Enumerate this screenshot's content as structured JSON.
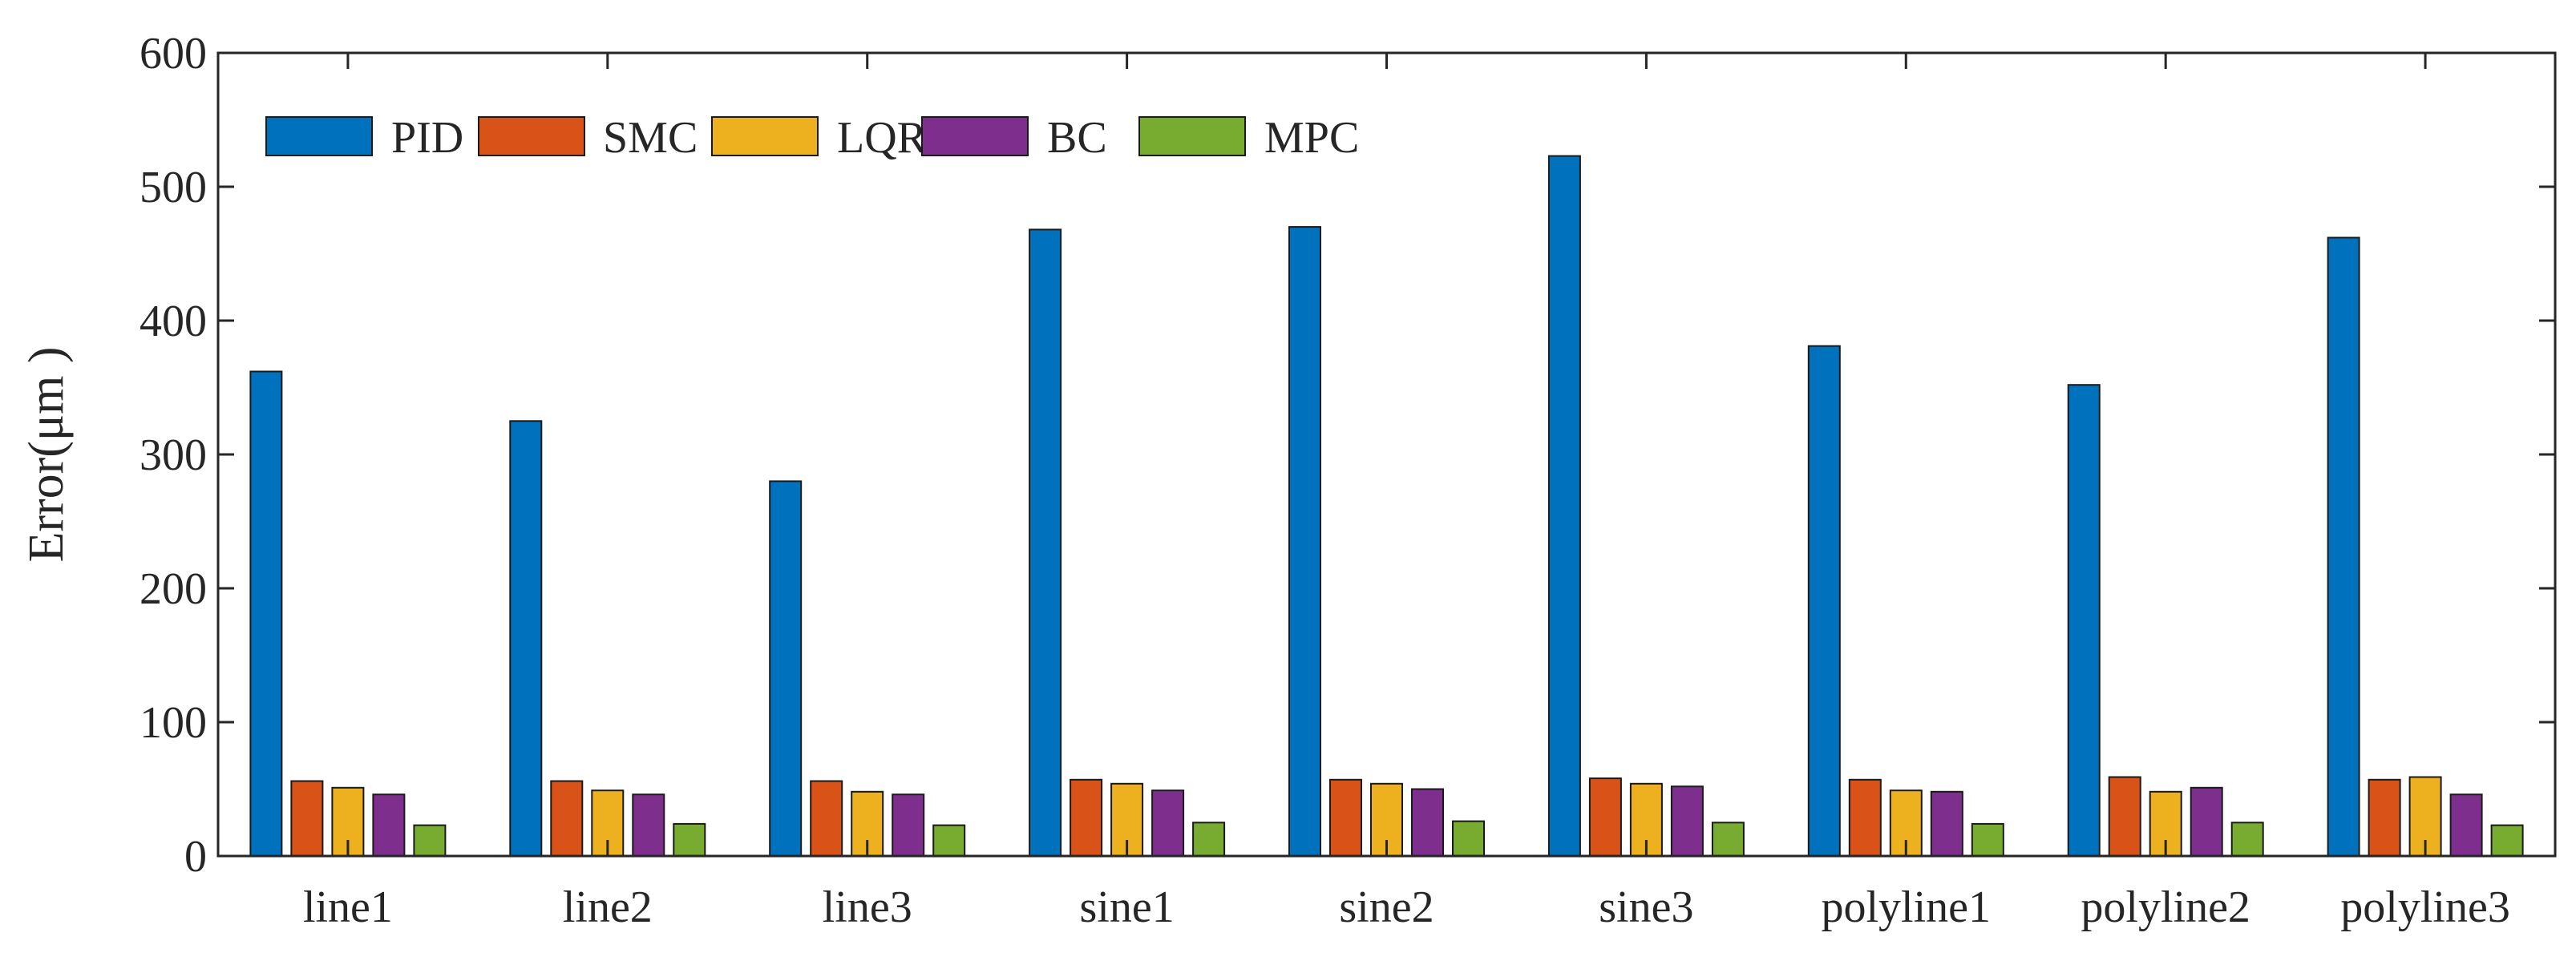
{
  "chart_data": {
    "type": "bar",
    "title": "",
    "xlabel": "",
    "ylabel": "Error(μm )",
    "ylim": [
      0,
      600
    ],
    "yticks": [
      0,
      100,
      200,
      300,
      400,
      500,
      600
    ],
    "grid": false,
    "legend_position": "top-left",
    "categories": [
      "line1",
      "line2",
      "line3",
      "sine1",
      "sine2",
      "sine3",
      "polyline1",
      "polyline2",
      "polyline3"
    ],
    "series": [
      {
        "name": "PID",
        "color": "#0072BD",
        "values": [
          362,
          325,
          280,
          468,
          470,
          523,
          381,
          352,
          462
        ]
      },
      {
        "name": "SMC",
        "color": "#D95319",
        "values": [
          56,
          56,
          56,
          57,
          57,
          58,
          57,
          59,
          57
        ]
      },
      {
        "name": "LQR",
        "color": "#EDB120",
        "values": [
          51,
          49,
          48,
          54,
          54,
          54,
          49,
          48,
          59
        ]
      },
      {
        "name": "BC",
        "color": "#7E2F8E",
        "values": [
          46,
          46,
          46,
          49,
          50,
          52,
          48,
          51,
          46
        ]
      },
      {
        "name": "MPC",
        "color": "#77AC30",
        "values": [
          23,
          24,
          23,
          25,
          26,
          25,
          24,
          25,
          23
        ]
      }
    ]
  }
}
